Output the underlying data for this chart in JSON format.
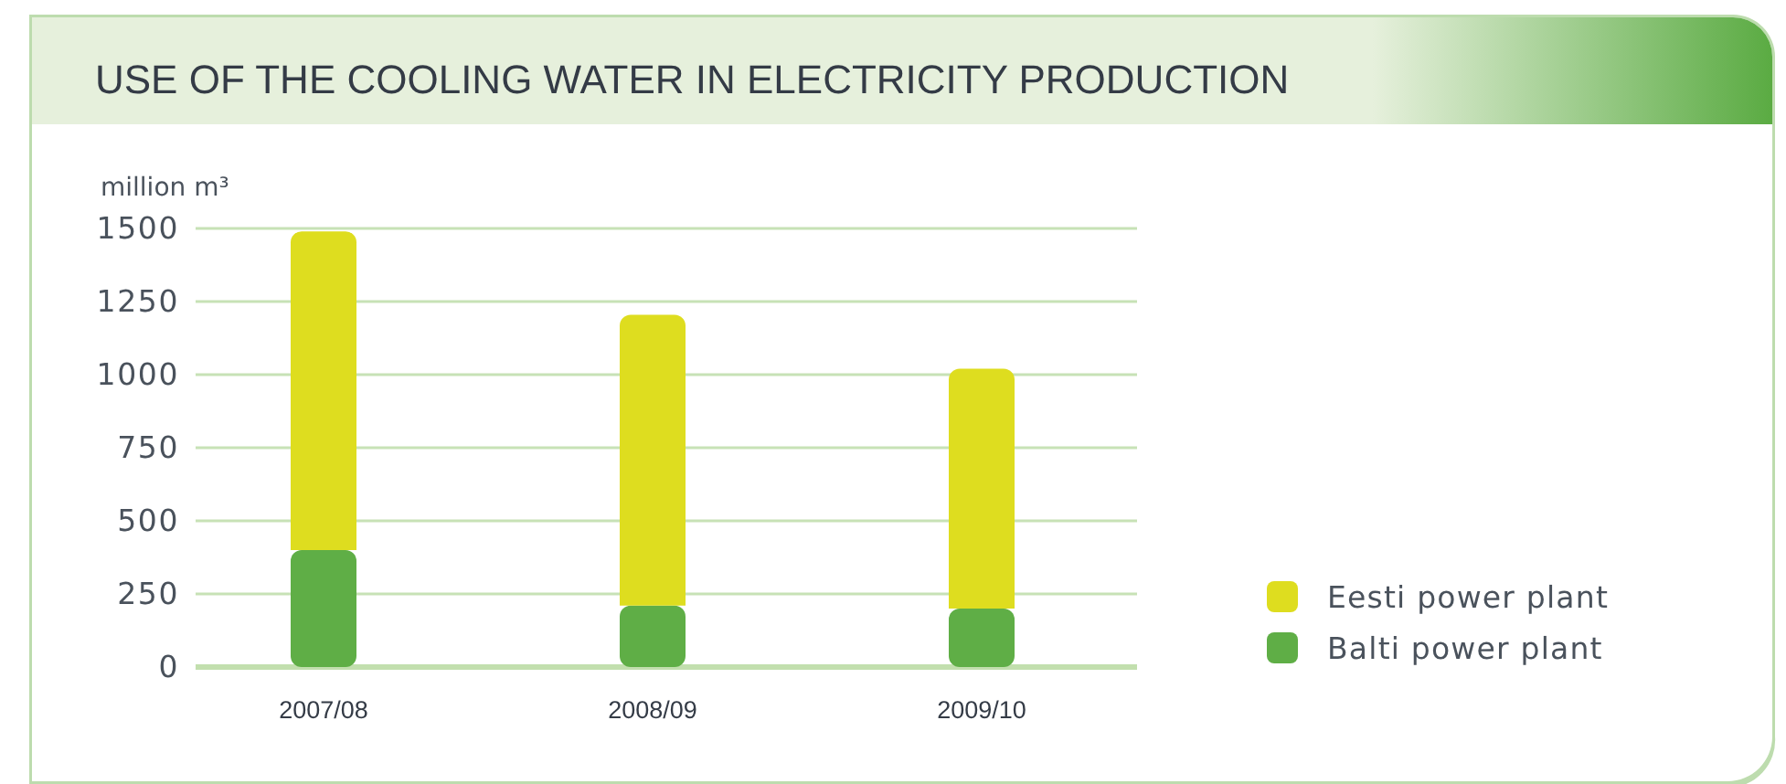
{
  "chart_data": {
    "type": "bar",
    "title": "USE OF THE COOLING WATER IN ELECTRICITY PRODUCTION",
    "ylabel": "million m³",
    "categories": [
      "2007/08",
      "2008/09",
      "2009/10"
    ],
    "series": [
      {
        "name": "Balti power plant",
        "color": "#5fae46",
        "values": [
          400,
          210,
          200
        ]
      },
      {
        "name": "Eesti power plant",
        "color": "#dedd1f",
        "values": [
          1090,
          995,
          820
        ]
      }
    ],
    "stacked": true,
    "ylim": [
      0,
      1500
    ],
    "yticks": [
      0,
      250,
      500,
      750,
      1000,
      1250,
      1500
    ],
    "grid": "y",
    "legend": "right"
  }
}
